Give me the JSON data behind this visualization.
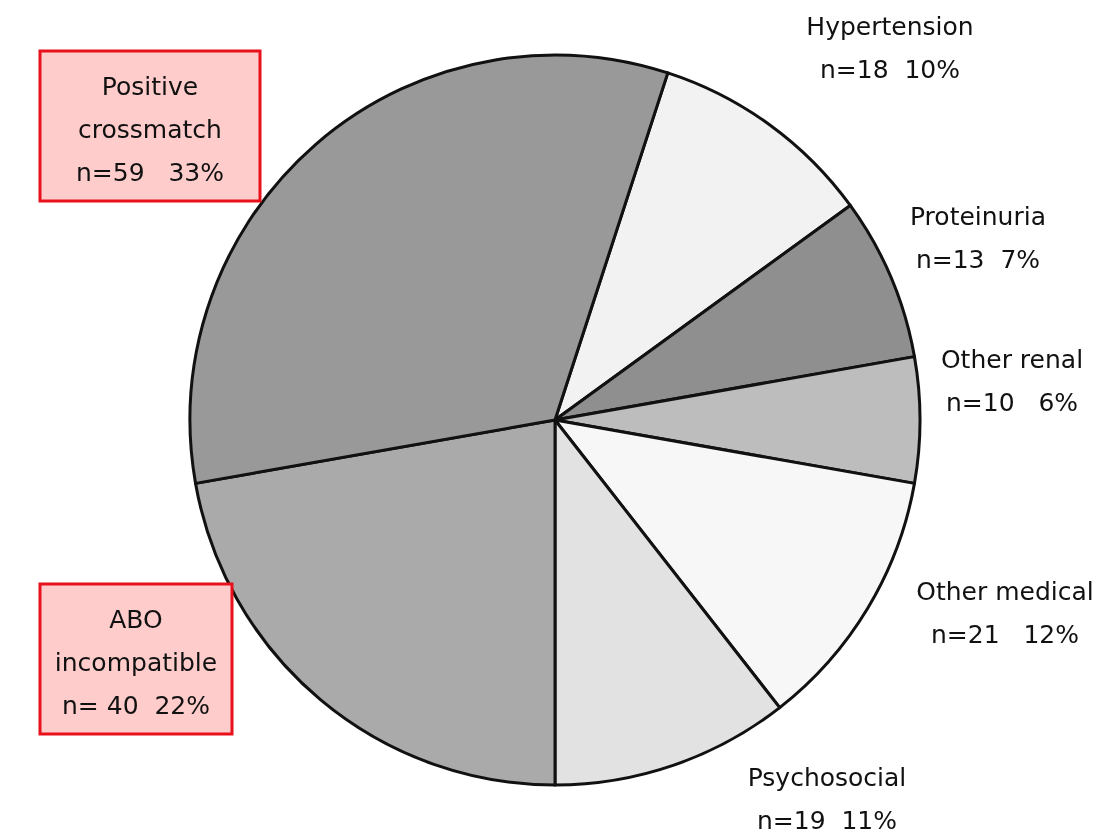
{
  "chart_data": {
    "type": "pie",
    "categories": [
      "Hypertension",
      "Proteinuria",
      "Other renal",
      "Other medical",
      "Psychosocial",
      "ABO incompatible",
      "Positive crossmatch"
    ],
    "values": [
      18,
      13,
      10,
      21,
      19,
      40,
      59
    ],
    "value_labels": [
      "n=18  10%",
      "n=13  7%",
      "n=10   6%",
      "n=21   12%",
      "n=19  11%",
      "n= 40  22%",
      "n=59   33%"
    ],
    "colors": [
      "#f2f2f2",
      "#8f8f8f",
      "#bdbdbd",
      "#f7f7f7",
      "#e2e2e2",
      "#aaaaaa",
      "#999999"
    ]
  }
}
